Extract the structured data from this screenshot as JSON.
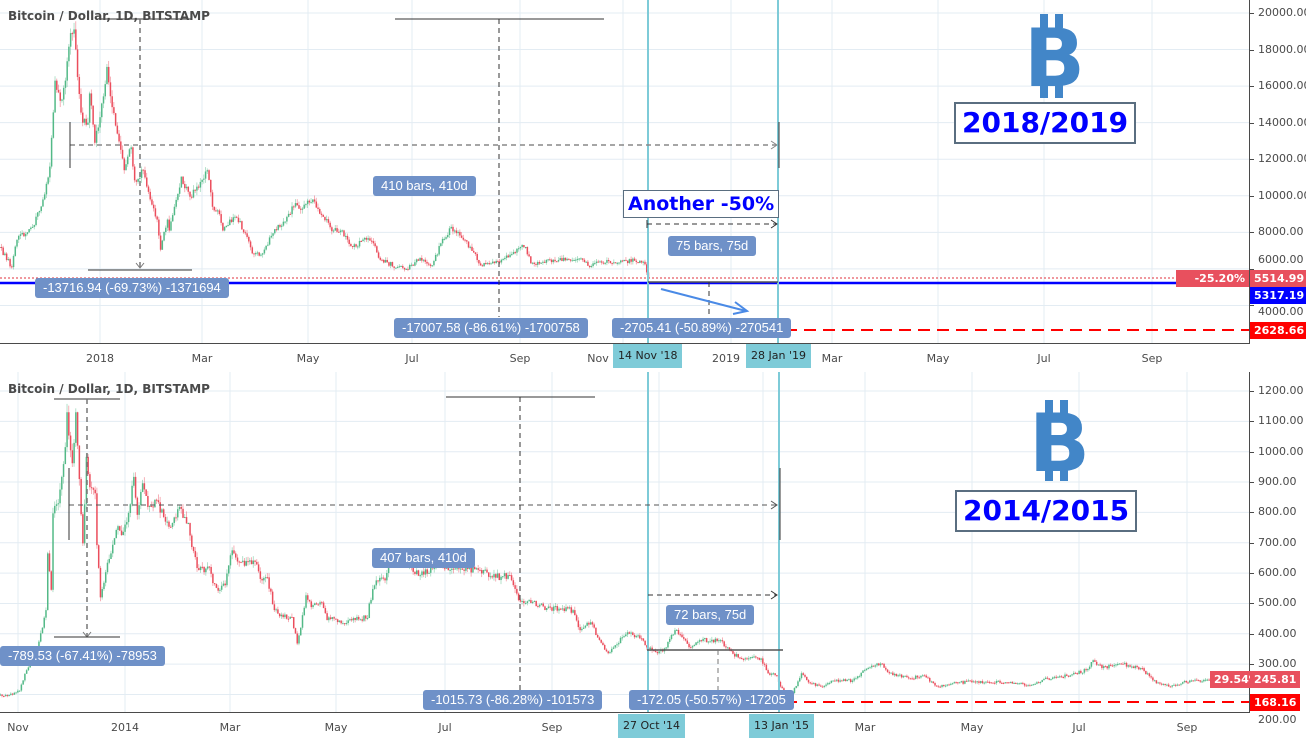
{
  "panels": [
    {
      "badge": "2018/2019",
      "callout": "Another -50%",
      "measures": {
        "peak_drop": "-13716.94 (-69.73%) -1371694",
        "bear_duration": "410 bars, 410d",
        "bear_drop": "-17007.58 (-86.61%) -1700758",
        "final_duration": "75 bars, 75d",
        "final_drop": "-2705.41 (-50.89%) -270541"
      },
      "price_tags": {
        "change": "-25.20%",
        "last": "5514.99",
        "line": "5317.19",
        "target": "2628.66"
      },
      "date_markers": [
        "14 Nov '18",
        "28 Jan '19"
      ],
      "colors": {
        "up": "#53b987",
        "down": "#eb4d5c",
        "marker": "#7ecbd8",
        "label": "#6f91c8",
        "support": "#0000ff",
        "target": "#ff0000",
        "logo": "#4286c8"
      },
      "icons": [
        "bitcoin-logo-icon",
        "arrow-down-right-icon"
      ]
    },
    {
      "badge": "2014/2015",
      "measures": {
        "peak_drop": "-789.53 (-67.41%) -78953",
        "bear_duration": "407 bars, 410d",
        "bear_drop": "-1015.73 (-86.28%) -101573",
        "final_duration": "72 bars, 75d",
        "final_drop": "-172.05 (-50.57%) -17205"
      },
      "price_tags": {
        "change": "29.54%",
        "last": "245.81",
        "target": "168.16"
      },
      "date_markers": [
        "27 Oct '14",
        "13 Jan '15"
      ],
      "icons": [
        "bitcoin-logo-icon"
      ]
    }
  ],
  "chart_data": [
    {
      "type": "candlestick",
      "title": "Bitcoin / Dollar, 1D, BITSTAMP",
      "interval": "1D",
      "ylim": [
        2000,
        20500
      ],
      "y_ticks": [
        "20000.00",
        "18000.00",
        "16000.00",
        "14000.00",
        "12000.00",
        "10000.00",
        "8000.00",
        "6000.00",
        "4000.00"
      ],
      "x_ticks": [
        "2018",
        "Mar",
        "May",
        "Jul",
        "Sep",
        "Nov",
        "2019",
        "Mar",
        "May",
        "Jul",
        "Sep"
      ],
      "grid": true,
      "horizontal_lines": {
        "support": 5317.19,
        "target": 2628.66,
        "last": 5514.99
      },
      "series": [
        {
          "close_path": [
            [
              "2017-11-04",
              7200
            ],
            [
              "2017-11-11",
              6100
            ],
            [
              "2017-11-14",
              7600
            ],
            [
              "2017-11-23",
              8300
            ],
            [
              "2017-11-29",
              9800
            ],
            [
              "2017-12-03",
              11600
            ],
            [
              "2017-12-06",
              16300
            ],
            [
              "2017-12-09",
              15200
            ],
            [
              "2017-12-12",
              16300
            ],
            [
              "2017-12-15",
              18900
            ],
            [
              "2017-12-17",
              19100
            ],
            [
              "2017-12-19",
              16500
            ],
            [
              "2017-12-22",
              14000
            ],
            [
              "2017-12-25",
              14000
            ],
            [
              "2017-12-26",
              15600
            ],
            [
              "2017-12-29",
              12900
            ],
            [
              "2018-01-01",
              14300
            ],
            [
              "2018-01-05",
              17050
            ],
            [
              "2018-01-08",
              14850
            ],
            [
              "2018-01-11",
              13400
            ],
            [
              "2018-01-15",
              11400
            ],
            [
              "2018-01-19",
              12650
            ],
            [
              "2018-01-21",
              10850
            ],
            [
              "2018-01-26",
              11400
            ],
            [
              "2018-01-30",
              9800
            ],
            [
              "2018-02-03",
              8700
            ],
            [
              "2018-02-05",
              7050
            ],
            [
              "2018-02-09",
              8700
            ],
            [
              "2018-02-10",
              8100
            ],
            [
              "2018-02-13",
              9400
            ],
            [
              "2018-02-17",
              11050
            ],
            [
              "2018-02-22",
              9950
            ],
            [
              "2018-02-26",
              10500
            ],
            [
              "2018-03-04",
              11400
            ],
            [
              "2018-03-07",
              9400
            ],
            [
              "2018-03-10",
              9200
            ],
            [
              "2018-03-13",
              8100
            ],
            [
              "2018-03-17",
              8700
            ],
            [
              "2018-03-21",
              8800
            ],
            [
              "2018-03-27",
              7750
            ],
            [
              "2018-03-30",
              6850
            ],
            [
              "2018-04-05",
              6850
            ],
            [
              "2018-04-11",
              7950
            ],
            [
              "2018-04-19",
              8850
            ],
            [
              "2018-04-24",
              9600
            ],
            [
              "2018-04-28",
              9300
            ],
            [
              "2018-05-04",
              9800
            ],
            [
              "2018-05-10",
              8850
            ],
            [
              "2018-05-16",
              8100
            ],
            [
              "2018-05-20",
              8100
            ],
            [
              "2018-05-27",
              7200
            ],
            [
              "2018-06-04",
              7600
            ],
            [
              "2018-06-08",
              7400
            ],
            [
              "2018-06-12",
              6500
            ],
            [
              "2018-06-22",
              6100
            ],
            [
              "2018-06-27",
              6000
            ],
            [
              "2018-07-05",
              6600
            ],
            [
              "2018-07-12",
              6200
            ],
            [
              "2018-07-17",
              7400
            ],
            [
              "2018-07-23",
              8300
            ],
            [
              "2018-07-30",
              7600
            ],
            [
              "2018-08-05",
              6900
            ],
            [
              "2018-08-09",
              6200
            ],
            [
              "2018-08-16",
              6400
            ],
            [
              "2018-08-21",
              6500
            ],
            [
              "2018-09-01",
              7200
            ],
            [
              "2018-09-04",
              7200
            ],
            [
              "2018-09-07",
              6300
            ],
            [
              "2018-09-20",
              6500
            ],
            [
              "2018-09-28",
              6550
            ],
            [
              "2018-10-07",
              6500
            ],
            [
              "2018-10-11",
              6100
            ],
            [
              "2018-10-15",
              6400
            ],
            [
              "2018-10-28",
              6350
            ],
            [
              "2018-11-06",
              6450
            ],
            [
              "2018-11-12",
              6250
            ],
            [
              "2018-11-14",
              5514.99
            ]
          ]
        }
      ]
    },
    {
      "type": "candlestick",
      "title": "Bitcoin / Dollar, 1D, BITSTAMP",
      "interval": "1D",
      "ylim": [
        150,
        1250
      ],
      "y_ticks": [
        "1200.00",
        "1100.00",
        "1000.00",
        "900.00",
        "800.00",
        "700.00",
        "600.00",
        "500.00",
        "400.00",
        "300.00",
        "200.00"
      ],
      "x_ticks": [
        "Nov",
        "2014",
        "Mar",
        "May",
        "Jul",
        "Sep",
        "Mar",
        "May",
        "Jul",
        "Sep"
      ],
      "grid": true,
      "horizontal_lines": {
        "target": 168.16,
        "last": 245.81
      },
      "series": [
        {
          "close_path": [
            [
              "2013-10-22",
              200
            ],
            [
              "2013-10-26",
              195
            ],
            [
              "2013-11-02",
              213
            ],
            [
              "2013-11-06",
              280
            ],
            [
              "2013-11-12",
              355
            ],
            [
              "2013-11-15",
              420
            ],
            [
              "2013-11-17",
              478
            ],
            [
              "2013-11-18",
              665
            ],
            [
              "2013-11-20",
              545
            ],
            [
              "2013-11-21",
              797
            ],
            [
              "2013-11-24",
              830
            ],
            [
              "2013-11-26",
              917
            ],
            [
              "2013-11-28",
              1015
            ],
            [
              "2013-11-29",
              1130
            ],
            [
              "2013-12-02",
              962
            ],
            [
              "2013-12-04",
              1130
            ],
            [
              "2013-12-05",
              1020
            ],
            [
              "2013-12-08",
              698
            ],
            [
              "2013-12-10",
              983
            ],
            [
              "2013-12-12",
              883
            ],
            [
              "2013-12-15",
              863
            ],
            [
              "2013-12-16",
              692
            ],
            [
              "2013-12-18",
              520
            ],
            [
              "2013-12-21",
              603
            ],
            [
              "2013-12-24",
              665
            ],
            [
              "2013-12-27",
              742
            ],
            [
              "2013-12-31",
              736
            ],
            [
              "2014-01-03",
              798
            ],
            [
              "2014-01-06",
              917
            ],
            [
              "2014-01-08",
              792
            ],
            [
              "2014-01-11",
              896
            ],
            [
              "2014-01-14",
              818
            ],
            [
              "2014-01-19",
              840
            ],
            [
              "2014-01-23",
              785
            ],
            [
              "2014-01-27",
              752
            ],
            [
              "2014-02-01",
              818
            ],
            [
              "2014-02-06",
              765
            ],
            [
              "2014-02-08",
              686
            ],
            [
              "2014-02-12",
              610
            ],
            [
              "2014-02-18",
              620
            ],
            [
              "2014-02-20",
              567
            ],
            [
              "2014-02-24",
              545
            ],
            [
              "2014-02-27",
              560
            ],
            [
              "2014-03-03",
              675
            ],
            [
              "2014-03-07",
              637
            ],
            [
              "2014-03-16",
              637
            ],
            [
              "2014-03-20",
              576
            ],
            [
              "2014-03-23",
              586
            ],
            [
              "2014-03-27",
              478
            ],
            [
              "2014-04-01",
              455
            ],
            [
              "2014-04-06",
              455
            ],
            [
              "2014-04-09",
              368
            ],
            [
              "2014-04-11",
              420
            ],
            [
              "2014-04-14",
              527
            ],
            [
              "2014-04-17",
              488
            ],
            [
              "2014-04-23",
              503
            ],
            [
              "2014-04-26",
              445
            ],
            [
              "2014-04-29",
              455
            ],
            [
              "2014-05-05",
              435
            ],
            [
              "2014-05-11",
              452
            ],
            [
              "2014-05-19",
              452
            ],
            [
              "2014-05-20",
              500
            ],
            [
              "2014-05-24",
              576
            ],
            [
              "2014-05-29",
              576
            ],
            [
              "2014-05-31",
              630
            ],
            [
              "2014-06-06",
              650
            ],
            [
              "2014-06-18",
              593
            ],
            [
              "2014-06-29",
              626
            ],
            [
              "2014-07-11",
              615
            ],
            [
              "2014-07-22",
              610
            ],
            [
              "2014-07-29",
              586
            ],
            [
              "2014-08-08",
              593
            ],
            [
              "2014-08-13",
              511
            ],
            [
              "2014-08-19",
              511
            ],
            [
              "2014-08-29",
              485
            ],
            [
              "2014-09-13",
              478
            ],
            [
              "2014-09-17",
              412
            ],
            [
              "2014-09-23",
              438
            ],
            [
              "2014-09-28",
              380
            ],
            [
              "2014-10-03",
              336
            ],
            [
              "2014-10-06",
              355
            ],
            [
              "2014-10-14",
              405
            ],
            [
              "2014-10-21",
              385
            ],
            [
              "2014-10-25",
              355
            ],
            [
              "2014-10-31",
              336
            ],
            [
              "2014-11-05",
              355
            ],
            [
              "2014-11-10",
              412
            ],
            [
              "2014-11-14",
              389
            ],
            [
              "2014-11-19",
              355
            ],
            [
              "2014-11-24",
              379
            ],
            [
              "2014-12-06",
              379
            ],
            [
              "2014-12-09",
              355
            ],
            [
              "2014-12-16",
              322
            ],
            [
              "2014-12-29",
              319
            ],
            [
              "2015-01-02",
              270
            ],
            [
              "2015-01-07",
              263
            ],
            [
              "2015-01-09",
              226
            ],
            [
              "2015-01-14",
              180
            ],
            [
              "2015-01-21",
              270
            ],
            [
              "2015-01-26",
              237
            ],
            [
              "2015-02-01",
              226
            ],
            [
              "2015-02-08",
              246
            ],
            [
              "2015-02-19",
              246
            ],
            [
              "2015-02-26",
              280
            ],
            [
              "2015-03-07",
              302
            ],
            [
              "2015-03-12",
              270
            ],
            [
              "2015-03-24",
              253
            ],
            [
              "2015-03-31",
              263
            ],
            [
              "2015-04-09",
              226
            ],
            [
              "2015-04-17",
              237
            ],
            [
              "2015-04-29",
              243
            ],
            [
              "2015-05-18",
              240
            ],
            [
              "2015-05-31",
              230
            ],
            [
              "2015-06-10",
              253
            ],
            [
              "2015-06-23",
              263
            ],
            [
              "2015-07-02",
              280
            ],
            [
              "2015-07-06",
              313
            ],
            [
              "2015-07-11",
              287
            ],
            [
              "2015-07-21",
              302
            ],
            [
              "2015-08-02",
              287
            ],
            [
              "2015-08-11",
              237
            ],
            [
              "2015-08-19",
              226
            ],
            [
              "2015-08-30",
              246
            ],
            [
              "2015-09-10",
              245.81
            ]
          ]
        }
      ]
    }
  ]
}
